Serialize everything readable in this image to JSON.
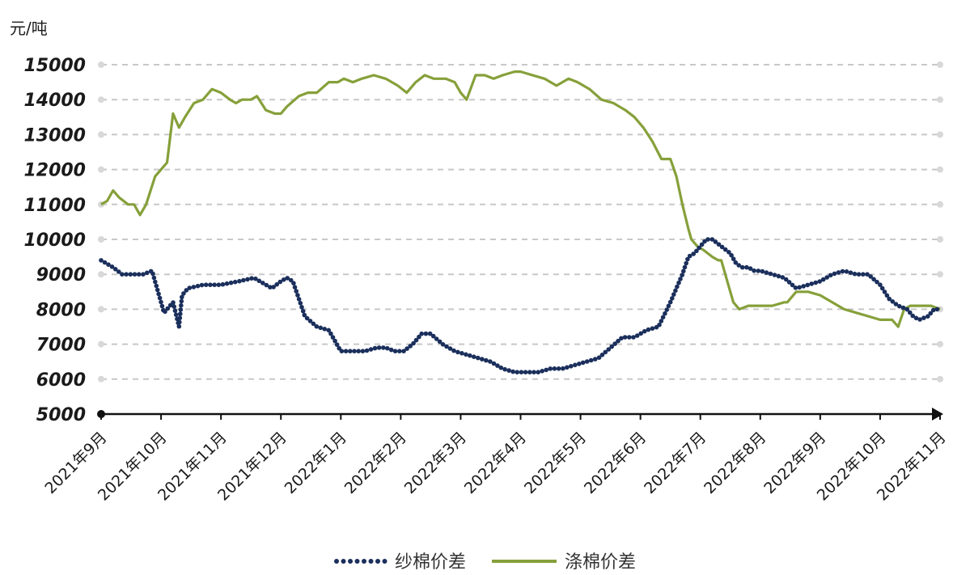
{
  "chart_data": {
    "type": "line",
    "title": "",
    "ylabel": "元/吨",
    "xlabel": "",
    "ylim": [
      5000,
      15000
    ],
    "yticks": [
      5000,
      6000,
      7000,
      8000,
      9000,
      10000,
      11000,
      12000,
      13000,
      14000,
      15000
    ],
    "grid": true,
    "legend_position": "bottom",
    "x_labels": [
      "2021年9月",
      "2021年10月",
      "2021年11月",
      "2021年12月",
      "2022年1月",
      "2022年2月",
      "2022年3月",
      "2022年4月",
      "2022年5月",
      "2022年6月",
      "2022年7月",
      "2022年8月",
      "2022年9月",
      "2022年10月",
      "2022年11月"
    ],
    "series": [
      {
        "name": "纱棉价差",
        "style": "dotted",
        "color": "#1b2f5c",
        "x": [
          0,
          0.2,
          0.35,
          0.5,
          0.7,
          0.85,
          0.95,
          1.05,
          1.2,
          1.3,
          1.35,
          1.45,
          1.7,
          2.0,
          2.3,
          2.55,
          2.75,
          2.85,
          3.0,
          3.1,
          3.2,
          3.4,
          3.6,
          3.8,
          4.0,
          4.2,
          4.4,
          4.6,
          4.75,
          4.9,
          5.05,
          5.2,
          5.35,
          5.5,
          5.7,
          5.9,
          6.1,
          6.3,
          6.5,
          6.7,
          6.9,
          7.1,
          7.3,
          7.5,
          7.7,
          7.9,
          8.1,
          8.3,
          8.5,
          8.7,
          8.9,
          9.1,
          9.3,
          9.5,
          9.7,
          9.8,
          9.9,
          10.0,
          10.1,
          10.2,
          10.35,
          10.5,
          10.6,
          10.7,
          10.8,
          10.9,
          11.0,
          11.2,
          11.4,
          11.6,
          11.8,
          12.0,
          12.2,
          12.4,
          12.6,
          12.8,
          13.0,
          13.15,
          13.3,
          13.45,
          13.55,
          13.65,
          13.8,
          13.9,
          14.0
        ],
        "values": [
          9400,
          9200,
          9000,
          9000,
          9000,
          9100,
          8500,
          7900,
          8200,
          7500,
          8400,
          8600,
          8700,
          8700,
          8800,
          8900,
          8700,
          8600,
          8800,
          8900,
          8800,
          7800,
          7500,
          7400,
          6800,
          6800,
          6800,
          6900,
          6900,
          6800,
          6800,
          7000,
          7300,
          7300,
          7000,
          6800,
          6700,
          6600,
          6500,
          6300,
          6200,
          6200,
          6200,
          6300,
          6300,
          6400,
          6500,
          6600,
          6900,
          7200,
          7200,
          7400,
          7500,
          8200,
          9000,
          9500,
          9600,
          9800,
          10000,
          10000,
          9800,
          9600,
          9300,
          9200,
          9200,
          9100,
          9100,
          9000,
          8900,
          8600,
          8700,
          8800,
          9000,
          9100,
          9000,
          9000,
          8700,
          8300,
          8100,
          8000,
          7800,
          7700,
          7800,
          8000,
          8000
        ]
      },
      {
        "name": "涤棉价差",
        "style": "solid",
        "color": "#86a03a",
        "x": [
          0,
          0.1,
          0.2,
          0.3,
          0.45,
          0.55,
          0.65,
          0.75,
          0.9,
          1.0,
          1.1,
          1.2,
          1.3,
          1.4,
          1.55,
          1.7,
          1.85,
          2.0,
          2.15,
          2.25,
          2.35,
          2.5,
          2.6,
          2.75,
          2.9,
          3.0,
          3.1,
          3.3,
          3.45,
          3.6,
          3.8,
          3.95,
          4.05,
          4.2,
          4.35,
          4.55,
          4.75,
          4.95,
          5.1,
          5.25,
          5.4,
          5.55,
          5.75,
          5.9,
          6.0,
          6.1,
          6.25,
          6.4,
          6.55,
          6.7,
          6.9,
          7.0,
          7.2,
          7.4,
          7.6,
          7.8,
          7.95,
          8.15,
          8.35,
          8.55,
          8.75,
          8.9,
          9.05,
          9.2,
          9.35,
          9.5,
          9.6,
          9.7,
          9.8,
          9.85,
          9.95,
          10.05,
          10.2,
          10.3,
          10.35,
          10.45,
          10.55,
          10.65,
          10.8,
          11.0,
          11.2,
          11.4,
          11.45,
          11.6,
          11.8,
          12.0,
          12.2,
          12.4,
          12.6,
          12.8,
          13.0,
          13.1,
          13.2,
          13.3,
          13.4,
          13.5,
          13.6,
          13.7,
          13.85,
          14.0
        ],
        "values": [
          11000,
          11100,
          11400,
          11200,
          11000,
          11000,
          10700,
          11000,
          11800,
          12000,
          12200,
          13600,
          13200,
          13500,
          13900,
          14000,
          14300,
          14200,
          14000,
          13900,
          14000,
          14000,
          14100,
          13700,
          13600,
          13600,
          13800,
          14100,
          14200,
          14200,
          14500,
          14500,
          14600,
          14500,
          14600,
          14700,
          14600,
          14400,
          14200,
          14500,
          14700,
          14600,
          14600,
          14500,
          14200,
          14000,
          14700,
          14700,
          14600,
          14700,
          14800,
          14800,
          14700,
          14600,
          14400,
          14600,
          14500,
          14300,
          14000,
          13900,
          13700,
          13500,
          13200,
          12800,
          12300,
          12300,
          11800,
          11000,
          10300,
          10000,
          9800,
          9700,
          9500,
          9400,
          9400,
          8800,
          8200,
          8000,
          8100,
          8100,
          8100,
          8200,
          8200,
          8500,
          8500,
          8400,
          8200,
          8000,
          7900,
          7800,
          7700,
          7700,
          7700,
          7500,
          8000,
          8100,
          8100,
          8100,
          8100,
          8000
        ]
      }
    ]
  }
}
